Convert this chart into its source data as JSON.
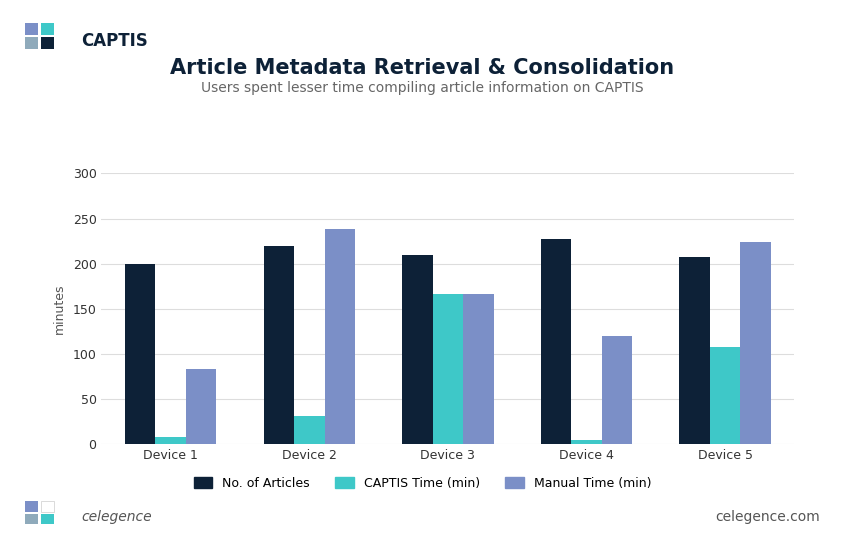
{
  "title": "Article Metadata Retrieval & Consolidation",
  "subtitle": "Users spent lesser time compiling article information on CAPTIS",
  "ylabel": "minutes",
  "categories": [
    "Device 1",
    "Device 2",
    "Device 3",
    "Device 4",
    "Device 5"
  ],
  "series": {
    "No. of Articles": [
      200,
      220,
      210,
      227,
      208
    ],
    "CAPTIS Time (min)": [
      8,
      32,
      167,
      5,
      108
    ],
    "Manual Time (min)": [
      83,
      238,
      167,
      120,
      224
    ]
  },
  "colors": {
    "No. of Articles": "#0d2137",
    "CAPTIS Time (min)": "#3ec8c8",
    "Manual Time (min)": "#7b8fc7"
  },
  "ylim": [
    0,
    300
  ],
  "yticks": [
    0,
    50,
    100,
    150,
    200,
    250,
    300
  ],
  "background_color": "#ffffff",
  "grid_color": "#dddddd",
  "title_color": "#0d2137",
  "subtitle_color": "#666666",
  "title_fontsize": 15,
  "subtitle_fontsize": 10,
  "axis_label_fontsize": 9,
  "tick_fontsize": 9,
  "legend_fontsize": 9,
  "bar_width": 0.22,
  "captis_logo_text": "CAPTIS",
  "celegence_text": "celegence",
  "website_text": "celegence.com",
  "captis_logo_colors": [
    [
      "#7b8fc7",
      "#3ec8c8"
    ],
    [
      "#8faabb",
      "#0d2137"
    ]
  ],
  "celegence_logo_colors": [
    [
      "#7b8fc7",
      "#ffffff"
    ],
    [
      "#8faabb",
      "#3ec8c8"
    ]
  ]
}
